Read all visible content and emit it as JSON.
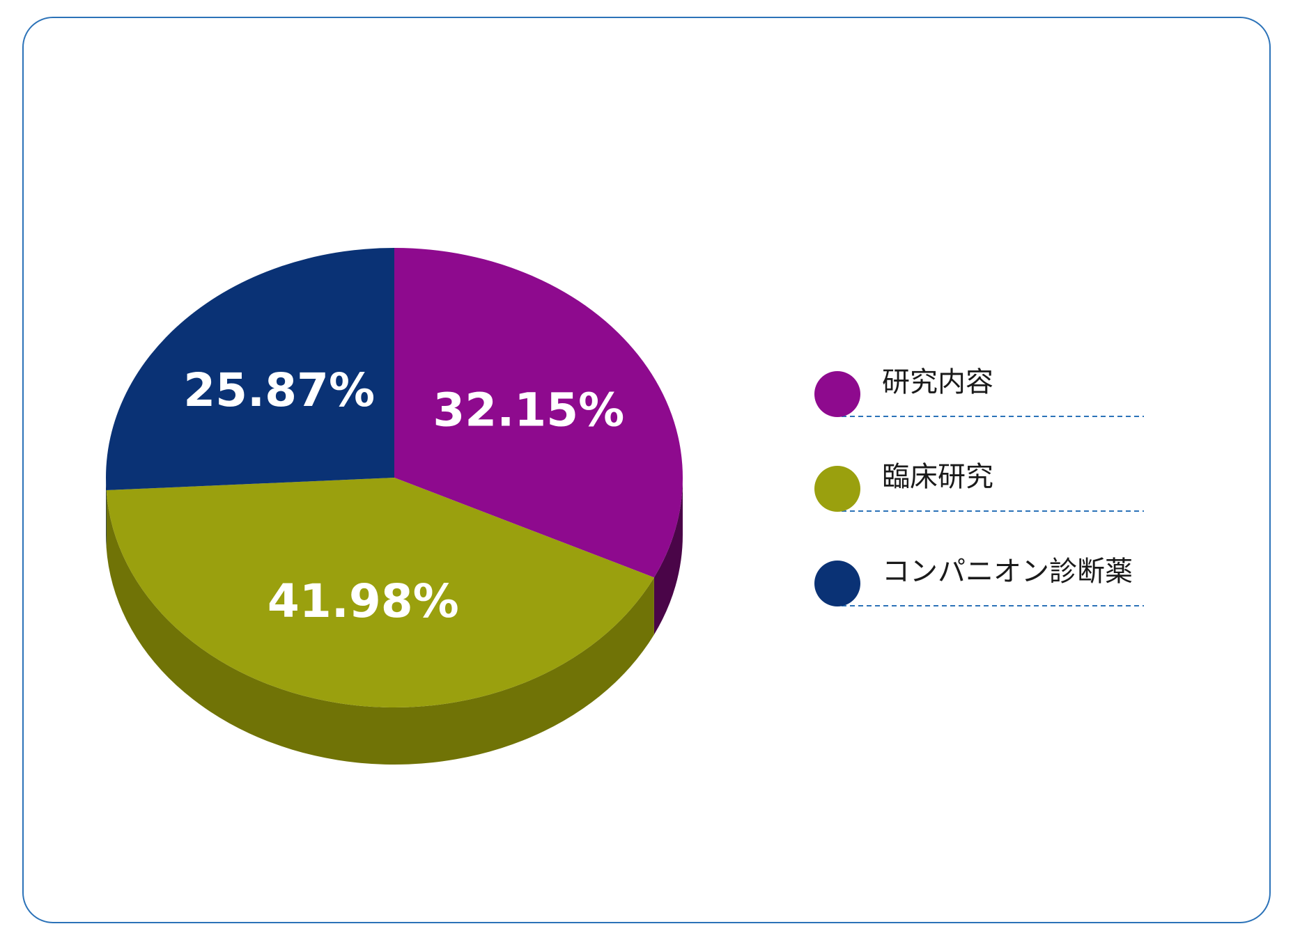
{
  "chart_data": {
    "type": "pie",
    "title": "",
    "legend_position": "right",
    "slices": [
      {
        "name": "研究内容",
        "value": 32.15,
        "label": "32.15%",
        "color": "#8e0a8e",
        "side_color": "#4a0548"
      },
      {
        "name": "臨床研究",
        "value": 41.98,
        "label": "41.98%",
        "color": "#9aa00e",
        "side_color": "#707306"
      },
      {
        "name": "コンパニオン診断薬",
        "value": 25.87,
        "label": "25.87%",
        "color": "#0a3275",
        "side_color": "#061f4a"
      }
    ],
    "legend": [
      {
        "label": "研究内容",
        "color": "#8e0a8e"
      },
      {
        "label": "臨床研究",
        "color": "#9aa00e"
      },
      {
        "label": "コンパニオン診断薬",
        "color": "#0a3275"
      }
    ],
    "legend_rule_color": "#2b72b8"
  }
}
